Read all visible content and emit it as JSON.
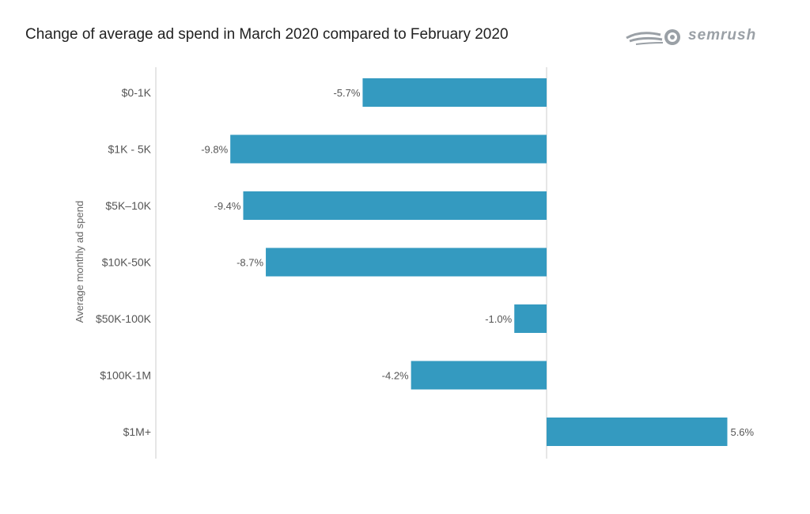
{
  "header": {
    "title": "Change of average ad spend in March 2020 compared to February 2020",
    "logo_text": "SEMRUSH"
  },
  "chart_data": {
    "type": "bar",
    "orientation": "horizontal",
    "title": "Change of average ad spend in March 2020 compared to February 2020",
    "ylabel": "Average monthly ad spend",
    "xlabel": "",
    "categories": [
      "$0-1K",
      "$1K - 5K",
      "$5K–10K",
      "$10K-50K",
      "$50K-100K",
      "$100K-1M",
      "$1M+"
    ],
    "values": [
      -5.7,
      -9.8,
      -9.4,
      -8.7,
      -1.0,
      -4.2,
      5.6
    ],
    "value_labels": [
      "-5.7%",
      "-9.8%",
      "-9.4%",
      "-8.7%",
      "-1.0%",
      "-4.2%",
      "5.6%"
    ],
    "unit": "%",
    "xlim": [
      -12,
      8
    ],
    "bar_color": "#349ac0",
    "grid": false
  }
}
